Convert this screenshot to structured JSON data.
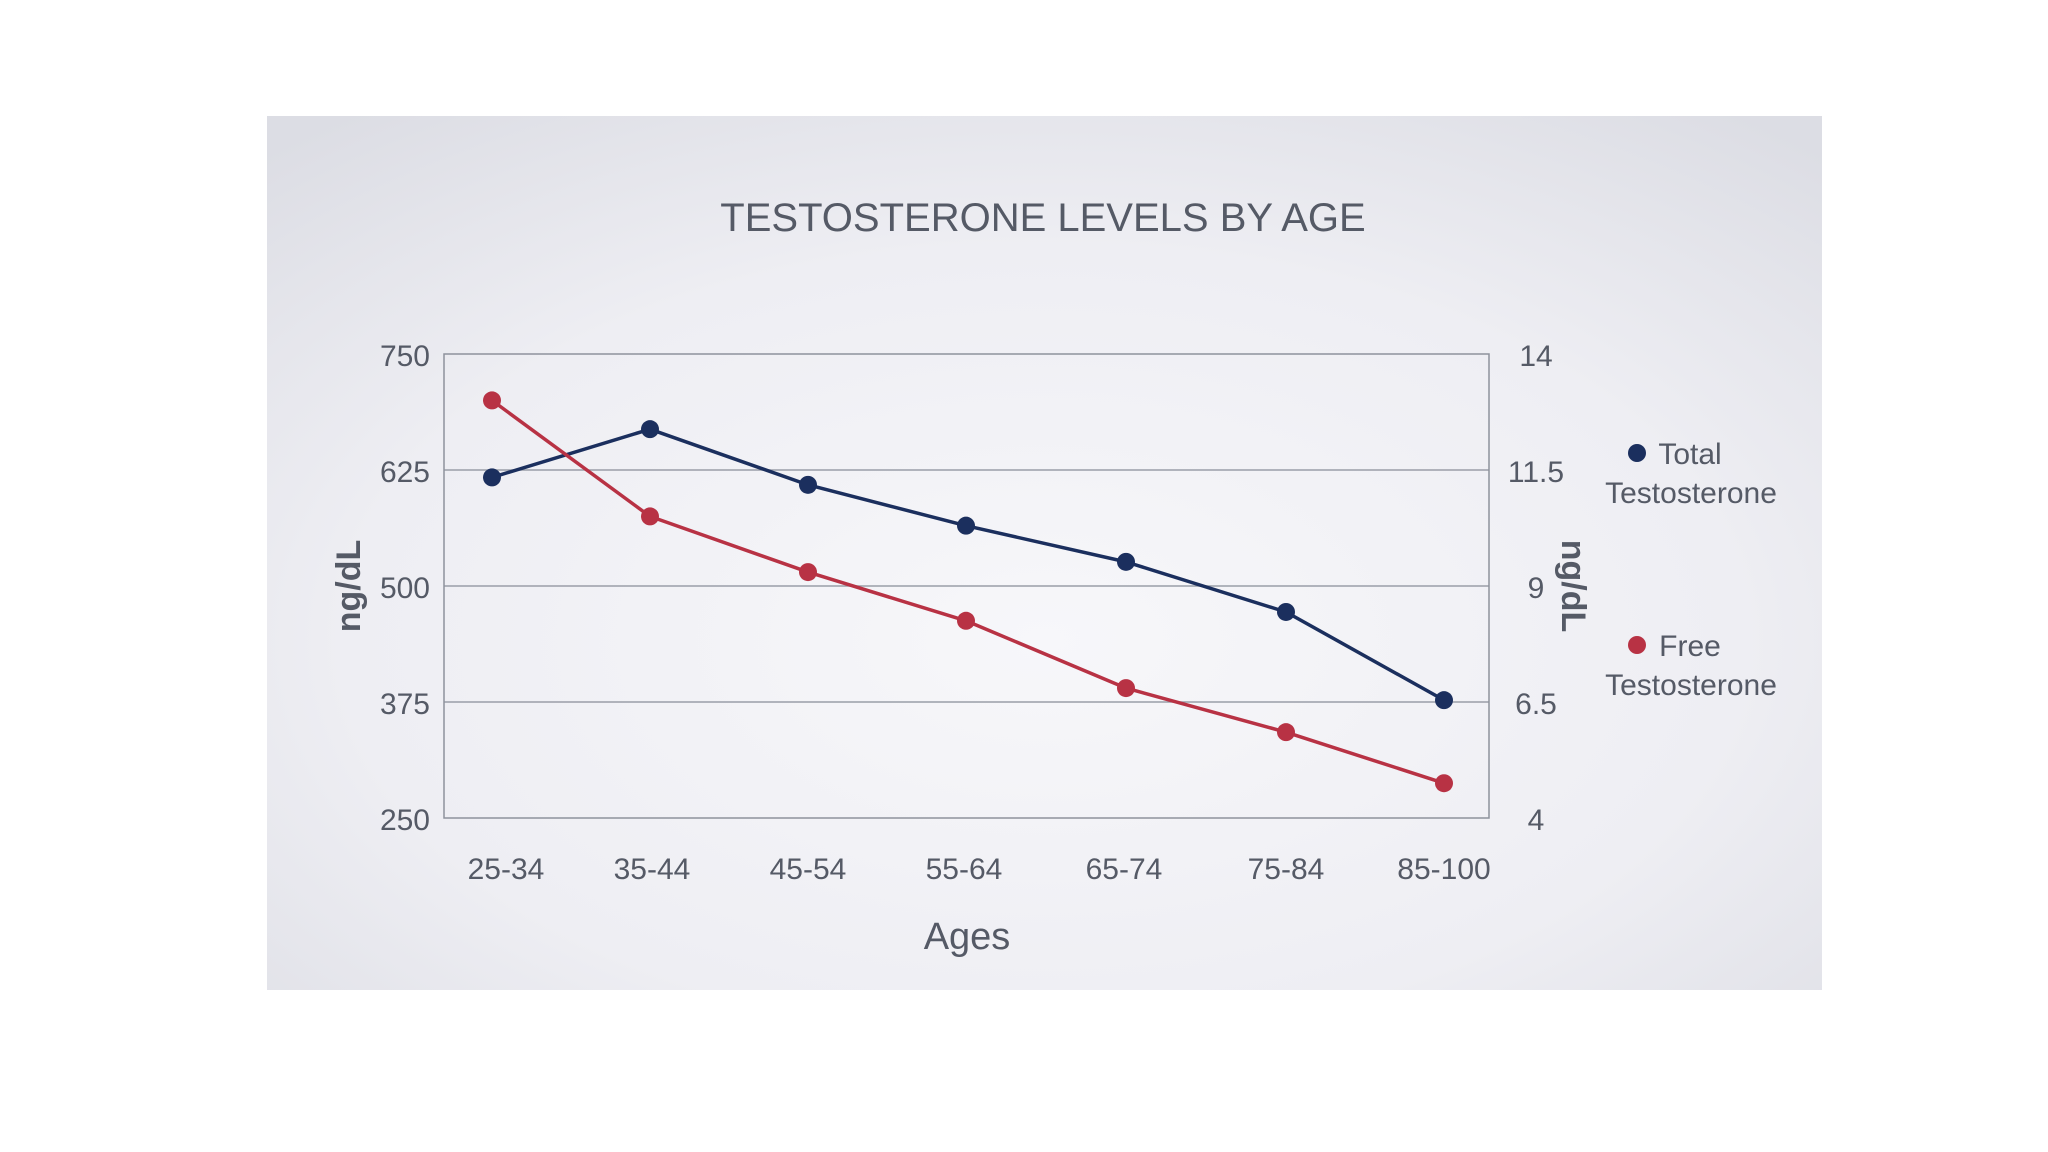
{
  "chart_data": {
    "type": "line",
    "title": "TESTOSTERONE LEVELS BY AGE",
    "xlabel": "Ages",
    "ylabel_left": "ng/dL",
    "ylabel_right": "ng/dL",
    "categories": [
      "25-34",
      "35-44",
      "45-54",
      "55-64",
      "65-74",
      "75-84",
      "85-100"
    ],
    "y_left": {
      "lim": [
        250,
        750
      ],
      "ticks": [
        "750",
        "625",
        "500",
        "375",
        "250"
      ],
      "tick_values": [
        750,
        625,
        500,
        375,
        250
      ]
    },
    "y_right": {
      "lim": [
        4,
        14
      ],
      "ticks": [
        "14",
        "11.5",
        "9",
        "6.5",
        "4"
      ],
      "tick_values": [
        14,
        11.5,
        9,
        6.5,
        4
      ]
    },
    "series": [
      {
        "name": "Total Testosterone",
        "legend_lines": [
          "Total",
          "Testosterone"
        ],
        "axis": "left",
        "color": "#1b2f5e",
        "values": [
          617,
          669,
          609,
          565,
          526,
          472,
          377
        ]
      },
      {
        "name": "Free Testosterone",
        "legend_lines": [
          "Free",
          "Testosterone"
        ],
        "axis": "right",
        "color": "#b83244",
        "values": [
          13.0,
          10.5,
          9.3,
          8.25,
          6.8,
          5.85,
          4.75
        ]
      }
    ],
    "grid": true,
    "legend_position": "right"
  }
}
